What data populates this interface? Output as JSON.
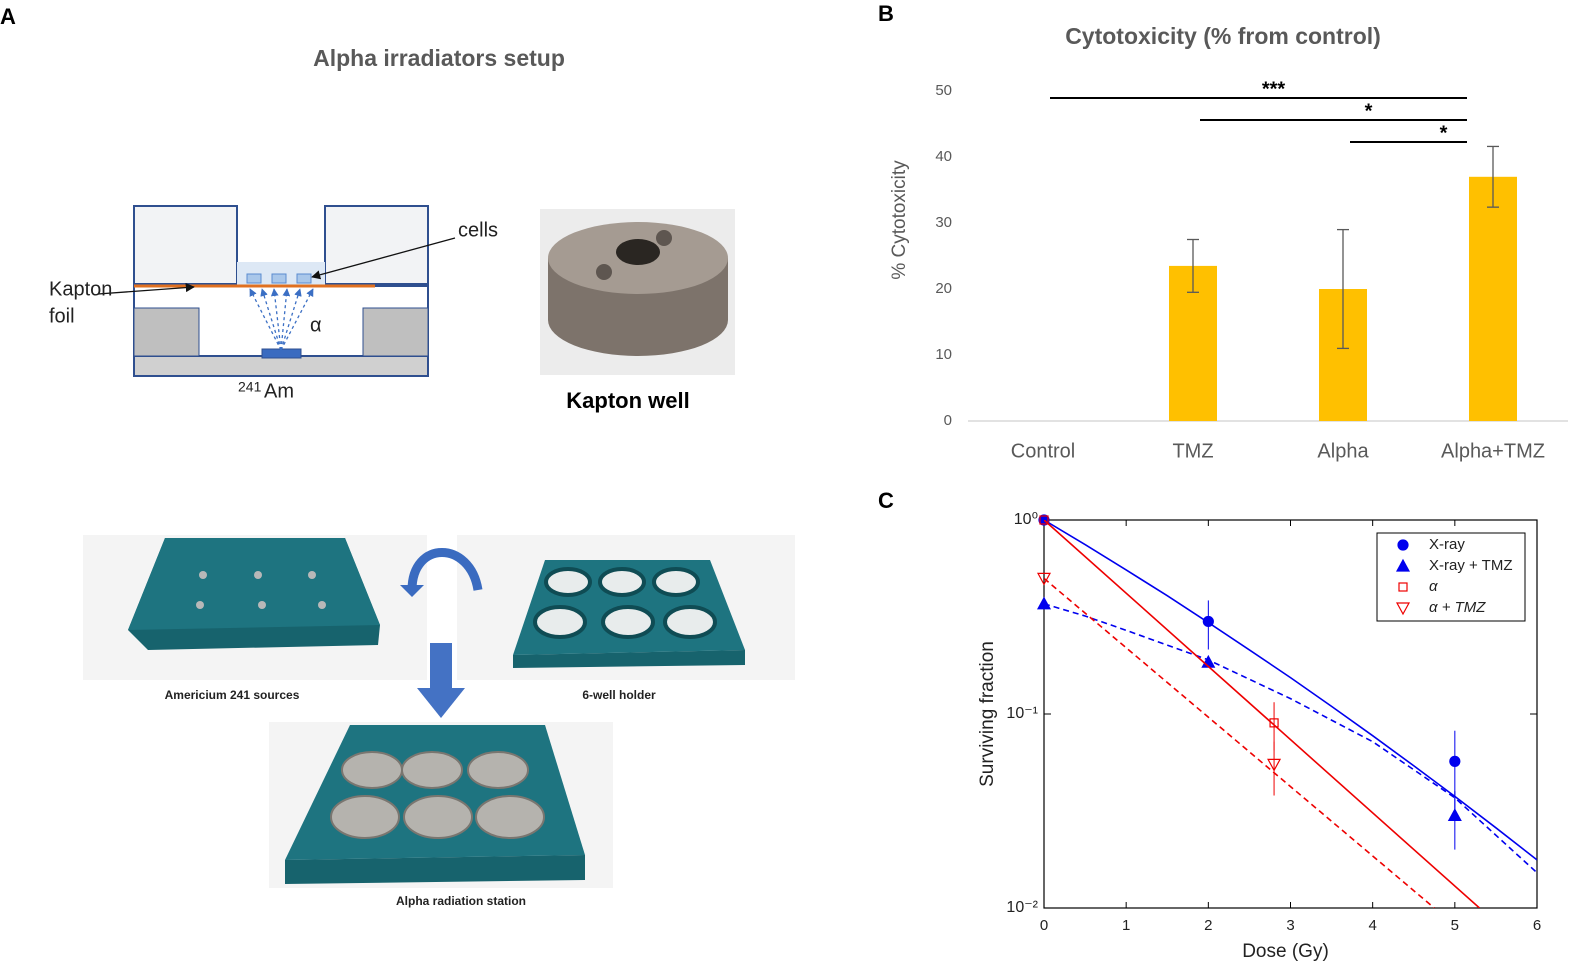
{
  "panel_a": {
    "label": "A",
    "title": "Alpha irradiators setup",
    "cells_label": "cells",
    "foil_label": [
      "Kapton",
      "foil"
    ],
    "alpha_label": "α",
    "isotope_mass": "241",
    "isotope": "Am",
    "photo_caption": "Kapton well",
    "station_captions": [
      "Americium 241 sources",
      "6-well holder",
      "Alpha radiation station"
    ]
  },
  "chart_data": [
    {
      "type": "bar",
      "panel": "B",
      "title": "Cytotoxicity (% from control)",
      "ylabel": "% Cytotoxicity",
      "categories": [
        "Control",
        "TMZ",
        "Alpha",
        "Alpha+TMZ"
      ],
      "values": [
        0,
        23.5,
        20,
        37
      ],
      "errors": [
        null,
        4,
        9,
        4.6
      ],
      "color": "#ffc000",
      "ylim": [
        0,
        50
      ],
      "yticks": [
        0,
        10,
        20,
        30,
        40,
        50
      ],
      "significance": [
        {
          "from": 0,
          "to": 3,
          "label": "***"
        },
        {
          "from": 1,
          "to": 3,
          "label": "*"
        },
        {
          "from": 2,
          "to": 3,
          "label": "*"
        }
      ]
    },
    {
      "type": "scatter",
      "panel": "C",
      "xlabel": "Dose (Gy)",
      "ylabel": "Surviving fraction",
      "log_y": true,
      "legend": "upper right",
      "xlim": [
        0,
        6
      ],
      "xticks": [
        0,
        1,
        2,
        3,
        4,
        5,
        6
      ],
      "ylim": [
        0.01,
        1
      ],
      "yticks": [
        {
          "value": 1,
          "label": "10⁰"
        },
        {
          "value": 0.1,
          "label": "10⁻¹"
        },
        {
          "value": 0.01,
          "label": "10⁻²"
        }
      ],
      "series": [
        {
          "name": "X-ray",
          "color": "#0000ee",
          "marker": "circle",
          "filled": true,
          "x": [
            0,
            2,
            5
          ],
          "values": [
            1,
            0.3,
            0.057
          ],
          "errors": [
            null,
            0.085,
            0.025
          ],
          "fit": {
            "dash": false,
            "x": [
              0,
              0.5,
              1,
              1.5,
              2,
              2.5,
              3,
              3.5,
              4,
              4.5,
              5,
              5.5,
              6
            ],
            "y": [
              1,
              0.747,
              0.553,
              0.407,
              0.296,
              0.214,
              0.154,
              0.1095,
              0.0773,
              0.0541,
              0.0376,
              0.0259,
              0.0177
            ]
          }
        },
        {
          "name": "X-ray + TMZ",
          "color": "#0000ee",
          "marker": "triangle",
          "filled": true,
          "x": [
            0,
            2,
            5
          ],
          "values": [
            0.37,
            0.185,
            0.03
          ],
          "errors": [
            null,
            null,
            0.01
          ],
          "fit": {
            "dash": true,
            "x": [
              0,
              0.5,
              1,
              2,
              3,
              4,
              5,
              6
            ],
            "y": [
              0.37,
              0.32,
              0.27,
              0.19,
              0.12,
              0.072,
              0.037,
              0.0152
            ]
          }
        },
        {
          "name": "α",
          "color": "#ee0000",
          "marker": "square",
          "filled": false,
          "x": [
            0,
            2.8
          ],
          "values": [
            1,
            0.09
          ],
          "errors": [
            null,
            0.025
          ],
          "fit": {
            "dash": false,
            "x": [
              0,
              5.3
            ],
            "y": [
              1,
              0.01
            ]
          }
        },
        {
          "name": "α + TMZ",
          "color": "#ee0000",
          "marker": "triangle-down",
          "filled": false,
          "x": [
            0,
            2.8
          ],
          "values": [
            0.5,
            0.055
          ],
          "errors": [
            null,
            0.017
          ],
          "fit": {
            "dash": true,
            "x": [
              0,
              4.75
            ],
            "y": [
              0.5,
              0.01
            ]
          }
        }
      ]
    }
  ]
}
